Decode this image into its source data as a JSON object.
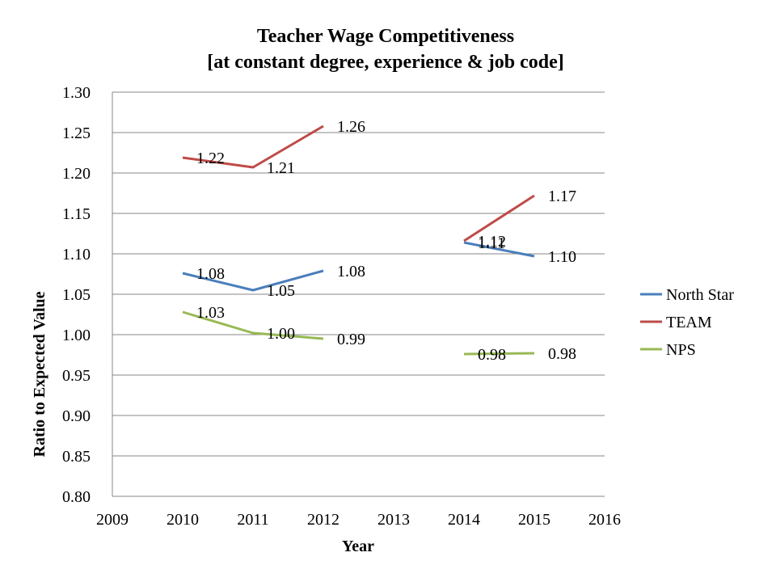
{
  "chart_data": {
    "type": "line",
    "title": "Teacher Wage Competitiveness",
    "subtitle": "[at constant degree, experience & job code]",
    "xlabel": "Year",
    "ylabel": "Ratio to Expected Value",
    "xlim": [
      2009,
      2016
    ],
    "ylim": [
      0.8,
      1.3
    ],
    "x_ticks": [
      "2009",
      "2010",
      "2011",
      "2012",
      "2013",
      "2014",
      "2015",
      "2016"
    ],
    "y_ticks": [
      "1.30",
      "1.25",
      "1.20",
      "1.15",
      "1.10",
      "1.05",
      "1.00",
      "0.95",
      "0.90",
      "0.85",
      "0.80"
    ],
    "grid": "horizontal",
    "legend_position": "right",
    "series": [
      {
        "name": "North Star",
        "color": "#4a7ebb",
        "segments": [
          {
            "x": [
              2010,
              2011,
              2012
            ],
            "y": [
              1.076,
              1.055,
              1.079
            ],
            "labels": [
              "1.08",
              "1.05",
              "1.08"
            ]
          },
          {
            "x": [
              2014,
              2015
            ],
            "y": [
              1.114,
              1.097
            ],
            "labels": [
              "1.11",
              "1.10"
            ]
          }
        ]
      },
      {
        "name": "TEAM",
        "color": "#be4b48",
        "segments": [
          {
            "x": [
              2010,
              2011,
              2012
            ],
            "y": [
              1.219,
              1.207,
              1.258
            ],
            "labels": [
              "1.22",
              "1.21",
              "1.26"
            ]
          },
          {
            "x": [
              2014,
              2015
            ],
            "y": [
              1.116,
              1.172
            ],
            "labels": [
              "1.12",
              "1.17"
            ]
          }
        ]
      },
      {
        "name": "NPS",
        "color": "#98b954",
        "segments": [
          {
            "x": [
              2010,
              2011,
              2012
            ],
            "y": [
              1.028,
              1.002,
              0.995
            ],
            "labels": [
              "1.03",
              "1.00",
              "0.99"
            ]
          },
          {
            "x": [
              2014,
              2015
            ],
            "y": [
              0.976,
              0.977
            ],
            "labels": [
              "0.98",
              "0.98"
            ]
          }
        ]
      }
    ]
  }
}
